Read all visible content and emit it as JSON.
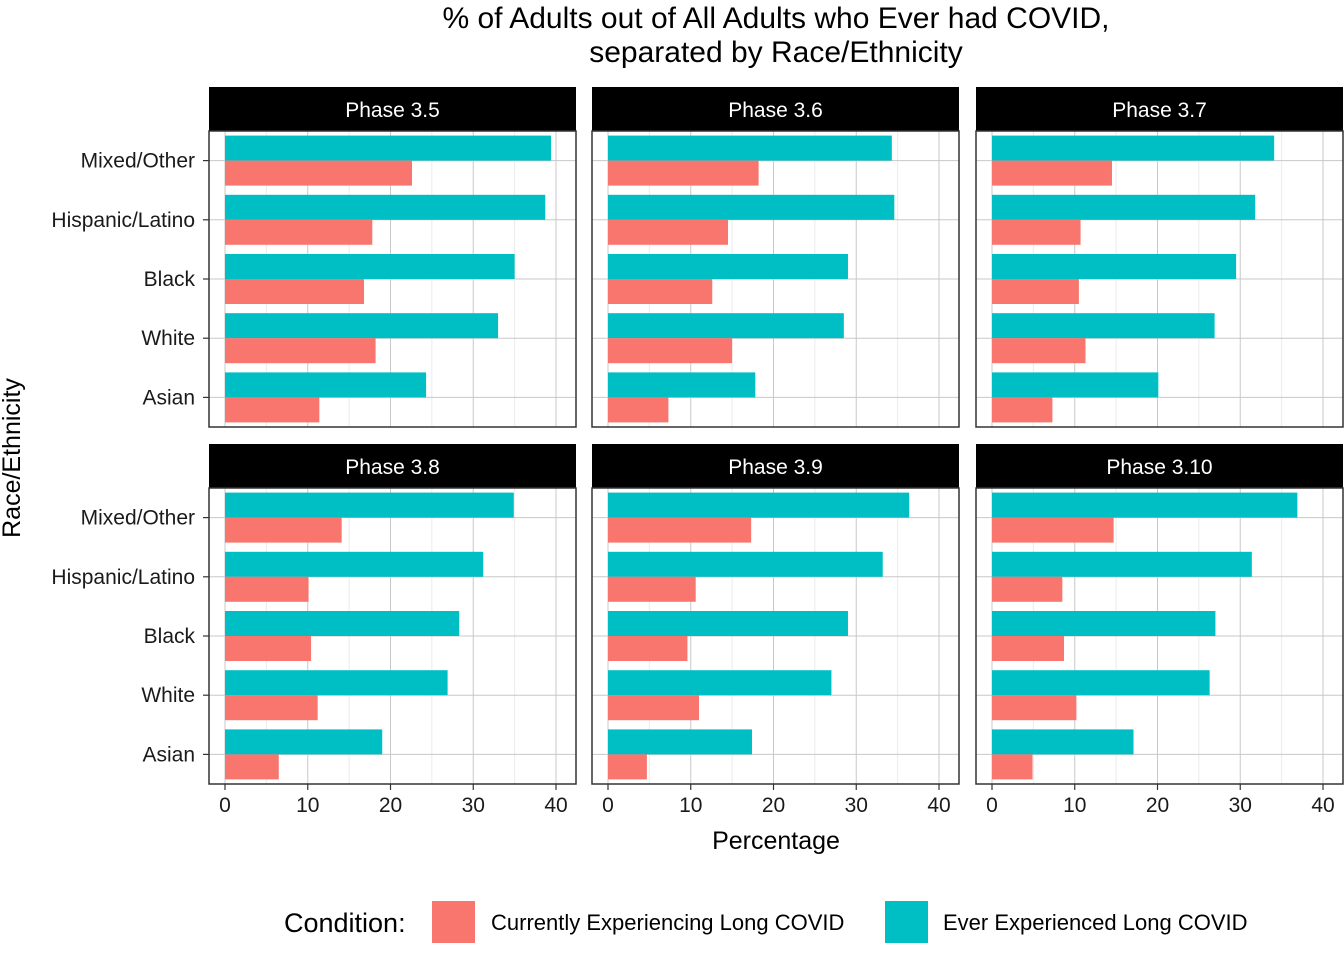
{
  "chart_data": {
    "type": "bar",
    "orientation": "horizontal",
    "title": "% of Adults out of All Adults who Ever had COVID,\nseparated by Race/Ethnicity",
    "xlabel": "Percentage",
    "ylabel": "Race/Ethnicity",
    "xlim": [
      0,
      40
    ],
    "x_ticks": [
      0,
      10,
      20,
      30,
      40
    ],
    "grid": true,
    "categories": [
      "Mixed/Other",
      "Hispanic/Latino",
      "Black",
      "White",
      "Asian"
    ],
    "legend": {
      "title": "Condition:",
      "position": "bottom",
      "entries": [
        {
          "name": "Currently Experiencing Long COVID",
          "color": "#F8766D"
        },
        {
          "name": "Ever Experienced Long COVID",
          "color": "#00BFC4"
        }
      ]
    },
    "panels": [
      {
        "label": "Phase 3.5",
        "series": [
          {
            "name": "Currently Experiencing Long COVID",
            "values": [
              22.6,
              17.8,
              16.8,
              18.2,
              11.4
            ]
          },
          {
            "name": "Ever Experienced Long COVID",
            "values": [
              39.4,
              38.7,
              35.0,
              33.0,
              24.3
            ]
          }
        ]
      },
      {
        "label": "Phase 3.6",
        "series": [
          {
            "name": "Currently Experiencing Long COVID",
            "values": [
              18.2,
              14.5,
              12.6,
              15.0,
              7.3
            ]
          },
          {
            "name": "Ever Experienced Long COVID",
            "values": [
              34.3,
              34.6,
              29.0,
              28.5,
              17.8
            ]
          }
        ]
      },
      {
        "label": "Phase 3.7",
        "series": [
          {
            "name": "Currently Experiencing Long COVID",
            "values": [
              14.5,
              10.7,
              10.5,
              11.3,
              7.3
            ]
          },
          {
            "name": "Ever Experienced Long COVID",
            "values": [
              34.1,
              31.8,
              29.5,
              26.9,
              20.1
            ]
          }
        ]
      },
      {
        "label": "Phase 3.8",
        "series": [
          {
            "name": "Currently Experiencing Long COVID",
            "values": [
              14.1,
              10.1,
              10.4,
              11.2,
              6.5
            ]
          },
          {
            "name": "Ever Experienced Long COVID",
            "values": [
              34.9,
              31.2,
              28.3,
              26.9,
              19.0
            ]
          }
        ]
      },
      {
        "label": "Phase 3.9",
        "series": [
          {
            "name": "Currently Experiencing Long COVID",
            "values": [
              17.3,
              10.6,
              9.6,
              11.0,
              4.7
            ]
          },
          {
            "name": "Ever Experienced Long COVID",
            "values": [
              36.4,
              33.2,
              29.0,
              27.0,
              17.4
            ]
          }
        ]
      },
      {
        "label": "Phase 3.10",
        "series": [
          {
            "name": "Currently Experiencing Long COVID",
            "values": [
              14.7,
              8.5,
              8.7,
              10.2,
              4.9
            ]
          },
          {
            "name": "Ever Experienced Long COVID",
            "values": [
              36.9,
              31.4,
              27.0,
              26.3,
              17.1
            ]
          }
        ]
      }
    ]
  }
}
